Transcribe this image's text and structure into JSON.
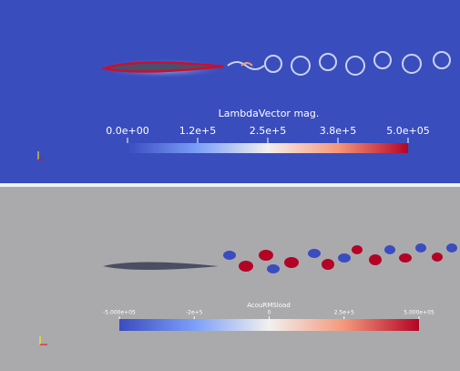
{
  "top_view": {
    "colorbar": {
      "title": "LambdaVector mag.",
      "labels": [
        "0.0e+00",
        "1.2e+5",
        "2.5e+5",
        "3.8e+5",
        "5.0e+05"
      ]
    }
  },
  "bottom_view": {
    "colorbar": {
      "title": "AcouRMSload",
      "labels": [
        "-5.000e+05",
        "-2e+5",
        "0",
        "2.5e+5",
        "5.000e+05"
      ]
    }
  }
}
